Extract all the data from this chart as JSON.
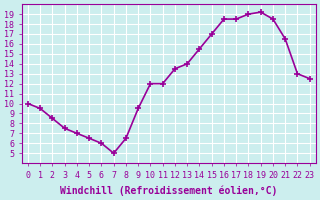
{
  "x": [
    0,
    1,
    2,
    3,
    4,
    5,
    6,
    7,
    8,
    9,
    10,
    11,
    12,
    13,
    14,
    15,
    16,
    17,
    18,
    19,
    20,
    21,
    22,
    23
  ],
  "y": [
    10,
    9.5,
    8.5,
    7.5,
    7.0,
    6.5,
    6.0,
    5.0,
    6.5,
    9.5,
    12.0,
    12.0,
    13.5,
    14.0,
    15.5,
    17.0,
    18.5,
    18.5,
    19.0,
    19.2,
    18.5,
    16.5,
    13.0,
    12.5
  ],
  "line_color": "#990099",
  "marker": "+",
  "marker_size": 5,
  "bg_color": "#cceeee",
  "grid_color": "#ffffff",
  "xlabel": "Windchill (Refroidissement éolien,°C)",
  "ylim": [
    4,
    20
  ],
  "xlim": [
    -0.5,
    23.5
  ],
  "yticks": [
    5,
    6,
    7,
    8,
    9,
    10,
    11,
    12,
    13,
    14,
    15,
    16,
    17,
    18,
    19
  ],
  "xticks": [
    0,
    1,
    2,
    3,
    4,
    5,
    6,
    7,
    8,
    9,
    10,
    11,
    12,
    13,
    14,
    15,
    16,
    17,
    18,
    19,
    20,
    21,
    22,
    23
  ],
  "tick_label_fontsize": 6.0,
  "xlabel_fontsize": 7.0
}
